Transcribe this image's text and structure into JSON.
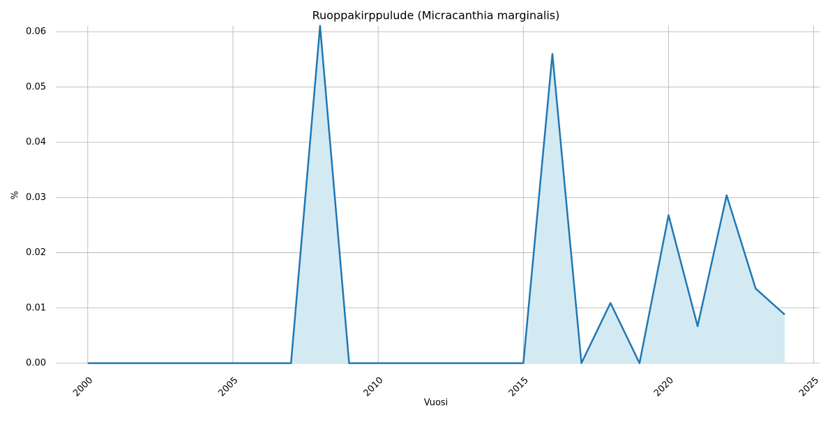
{
  "chart_data": {
    "type": "area",
    "title": "Ruoppakirppulude (Micracanthia marginalis)",
    "x_label": "Vuosi",
    "y_label": "%",
    "x": [
      2000,
      2001,
      2002,
      2003,
      2004,
      2005,
      2006,
      2007,
      2008,
      2009,
      2010,
      2011,
      2012,
      2013,
      2014,
      2015,
      2016,
      2017,
      2018,
      2019,
      2020,
      2021,
      2022,
      2023,
      2024
    ],
    "values": [
      0,
      0,
      0,
      0,
      0,
      0,
      0,
      0,
      0.0611,
      0,
      0,
      0,
      0,
      0,
      0,
      0,
      0.056,
      0,
      0.0109,
      0,
      0.0268,
      0.0067,
      0.0304,
      0.0135,
      0.0088
    ],
    "color": "#1f77b4",
    "fill_color": "#d4eaf2",
    "xlim": [
      1998.9,
      2025.2
    ],
    "xticks": [
      2000,
      2005,
      2010,
      2015,
      2020,
      2025
    ],
    "ylim": [
      0,
      0.0611
    ],
    "yticks": [
      {
        "value": 0,
        "label": "0.00"
      },
      0.01,
      0.02,
      0.03,
      0.04,
      0.05,
      0.06
    ],
    "grid": true
  }
}
